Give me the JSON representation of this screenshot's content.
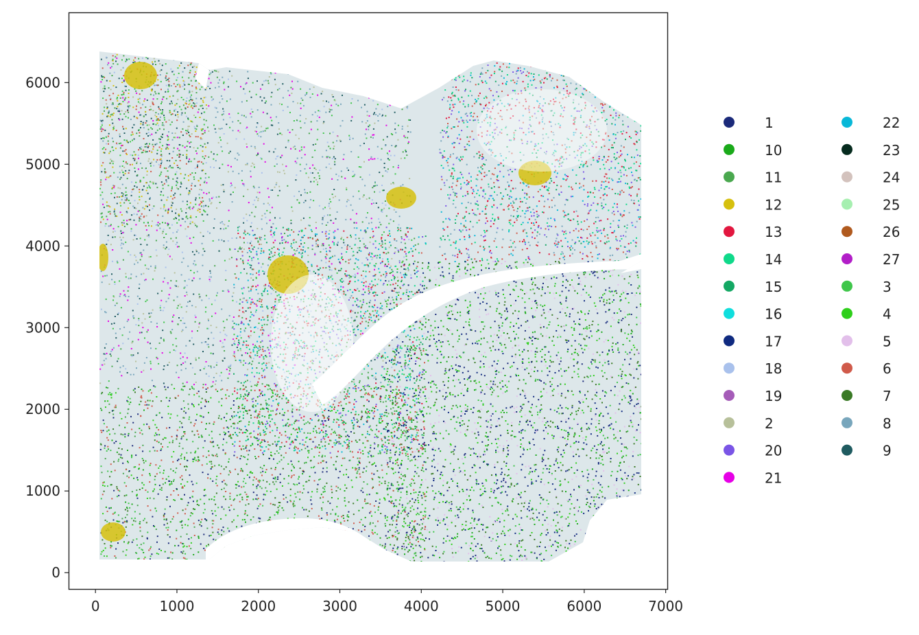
{
  "chart_data": {
    "type": "scatter",
    "title": "",
    "xlabel": "",
    "ylabel": "",
    "xlim": [
      -330,
      7020
    ],
    "ylim": [
      6860,
      -200
    ],
    "y_inverted": true,
    "grid": false,
    "legend_placement": "right",
    "x_ticks": [
      0,
      1000,
      2000,
      3000,
      4000,
      5000,
      6000,
      7000
    ],
    "x_tick_labels": [
      "0",
      "1000",
      "2000",
      "3000",
      "4000",
      "5000",
      "6000",
      "7000"
    ],
    "y_ticks": [
      0,
      1000,
      2000,
      3000,
      4000,
      5000,
      6000
    ],
    "y_tick_labels": [
      "0",
      "1000",
      "2000",
      "3000",
      "4000",
      "5000",
      "6000"
    ],
    "series": [
      {
        "name": "1",
        "color": "#1b2a7a"
      },
      {
        "name": "10",
        "color": "#1aaa1a"
      },
      {
        "name": "11",
        "color": "#4aa84f"
      },
      {
        "name": "12",
        "color": "#d6c00e"
      },
      {
        "name": "13",
        "color": "#e2173f"
      },
      {
        "name": "14",
        "color": "#0fd98a"
      },
      {
        "name": "15",
        "color": "#14a864"
      },
      {
        "name": "16",
        "color": "#10dedd"
      },
      {
        "name": "17",
        "color": "#0f2a80"
      },
      {
        "name": "18",
        "color": "#a9c1ec"
      },
      {
        "name": "19",
        "color": "#a55cb8"
      },
      {
        "name": "2",
        "color": "#b7c09a"
      },
      {
        "name": "20",
        "color": "#7a55e6"
      },
      {
        "name": "21",
        "color": "#e600e6"
      },
      {
        "name": "22",
        "color": "#08b8d8"
      },
      {
        "name": "23",
        "color": "#062b1e"
      },
      {
        "name": "24",
        "color": "#d3c2bd"
      },
      {
        "name": "25",
        "color": "#a6efb0"
      },
      {
        "name": "26",
        "color": "#b05a1e"
      },
      {
        "name": "27",
        "color": "#b21ec8"
      },
      {
        "name": "3",
        "color": "#3fc64a"
      },
      {
        "name": "4",
        "color": "#2ecf1a"
      },
      {
        "name": "5",
        "color": "#e2bfea"
      },
      {
        "name": "6",
        "color": "#d05a4a"
      },
      {
        "name": "7",
        "color": "#3a7a26"
      },
      {
        "name": "8",
        "color": "#78a6bc"
      },
      {
        "name": "9",
        "color": "#1f5b60"
      }
    ]
  }
}
